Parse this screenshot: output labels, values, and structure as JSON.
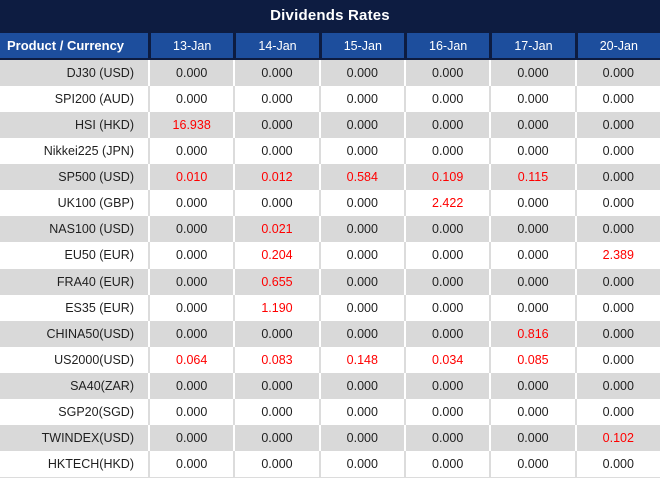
{
  "title": "Dividends Rates",
  "colors": {
    "title_bar_navy": "#0d1c41",
    "header_blue": "#1d4e9d",
    "row_gray": "#d9d9d9",
    "row_white": "#ffffff",
    "value_red": "#ff0000",
    "value_text": "#1f1f1f",
    "header_text": "#ffffff"
  },
  "table": {
    "product_column_header": "Product / Currency",
    "date_columns": [
      "13-Jan",
      "14-Jan",
      "15-Jan",
      "16-Jan",
      "17-Jan",
      "20-Jan"
    ],
    "rows": [
      {
        "product": "DJ30 (USD)",
        "values": [
          "0.000",
          "0.000",
          "0.000",
          "0.000",
          "0.000",
          "0.000"
        ],
        "red": [
          false,
          false,
          false,
          false,
          false,
          false
        ]
      },
      {
        "product": "SPI200 (AUD)",
        "values": [
          "0.000",
          "0.000",
          "0.000",
          "0.000",
          "0.000",
          "0.000"
        ],
        "red": [
          false,
          false,
          false,
          false,
          false,
          false
        ]
      },
      {
        "product": "HSI (HKD)",
        "values": [
          "16.938",
          "0.000",
          "0.000",
          "0.000",
          "0.000",
          "0.000"
        ],
        "red": [
          true,
          false,
          false,
          false,
          false,
          false
        ]
      },
      {
        "product": "Nikkei225 (JPN)",
        "values": [
          "0.000",
          "0.000",
          "0.000",
          "0.000",
          "0.000",
          "0.000"
        ],
        "red": [
          false,
          false,
          false,
          false,
          false,
          false
        ]
      },
      {
        "product": "SP500 (USD)",
        "values": [
          "0.010",
          "0.012",
          "0.584",
          "0.109",
          "0.115",
          "0.000"
        ],
        "red": [
          true,
          true,
          true,
          true,
          true,
          false
        ]
      },
      {
        "product": "UK100 (GBP)",
        "values": [
          "0.000",
          "0.000",
          "0.000",
          "2.422",
          "0.000",
          "0.000"
        ],
        "red": [
          false,
          false,
          false,
          true,
          false,
          false
        ]
      },
      {
        "product": "NAS100 (USD)",
        "values": [
          "0.000",
          "0.021",
          "0.000",
          "0.000",
          "0.000",
          "0.000"
        ],
        "red": [
          false,
          true,
          false,
          false,
          false,
          false
        ]
      },
      {
        "product": "EU50 (EUR)",
        "values": [
          "0.000",
          "0.204",
          "0.000",
          "0.000",
          "0.000",
          "2.389"
        ],
        "red": [
          false,
          true,
          false,
          false,
          false,
          true
        ]
      },
      {
        "product": "FRA40 (EUR)",
        "values": [
          "0.000",
          "0.655",
          "0.000",
          "0.000",
          "0.000",
          "0.000"
        ],
        "red": [
          false,
          true,
          false,
          false,
          false,
          false
        ]
      },
      {
        "product": "ES35 (EUR)",
        "values": [
          "0.000",
          "1.190",
          "0.000",
          "0.000",
          "0.000",
          "0.000"
        ],
        "red": [
          false,
          true,
          false,
          false,
          false,
          false
        ]
      },
      {
        "product": "CHINA50(USD)",
        "values": [
          "0.000",
          "0.000",
          "0.000",
          "0.000",
          "0.816",
          "0.000"
        ],
        "red": [
          false,
          false,
          false,
          false,
          true,
          false
        ]
      },
      {
        "product": "US2000(USD)",
        "values": [
          "0.064",
          "0.083",
          "0.148",
          "0.034",
          "0.085",
          "0.000"
        ],
        "red": [
          true,
          true,
          true,
          true,
          true,
          false
        ]
      },
      {
        "product": "SA40(ZAR)",
        "values": [
          "0.000",
          "0.000",
          "0.000",
          "0.000",
          "0.000",
          "0.000"
        ],
        "red": [
          false,
          false,
          false,
          false,
          false,
          false
        ]
      },
      {
        "product": "SGP20(SGD)",
        "values": [
          "0.000",
          "0.000",
          "0.000",
          "0.000",
          "0.000",
          "0.000"
        ],
        "red": [
          false,
          false,
          false,
          false,
          false,
          false
        ]
      },
      {
        "product": "TWINDEX(USD)",
        "values": [
          "0.000",
          "0.000",
          "0.000",
          "0.000",
          "0.000",
          "0.102"
        ],
        "red": [
          false,
          false,
          false,
          false,
          false,
          true
        ]
      },
      {
        "product": "HKTECH(HKD)",
        "values": [
          "0.000",
          "0.000",
          "0.000",
          "0.000",
          "0.000",
          "0.000"
        ],
        "red": [
          false,
          false,
          false,
          false,
          false,
          false
        ]
      }
    ]
  }
}
